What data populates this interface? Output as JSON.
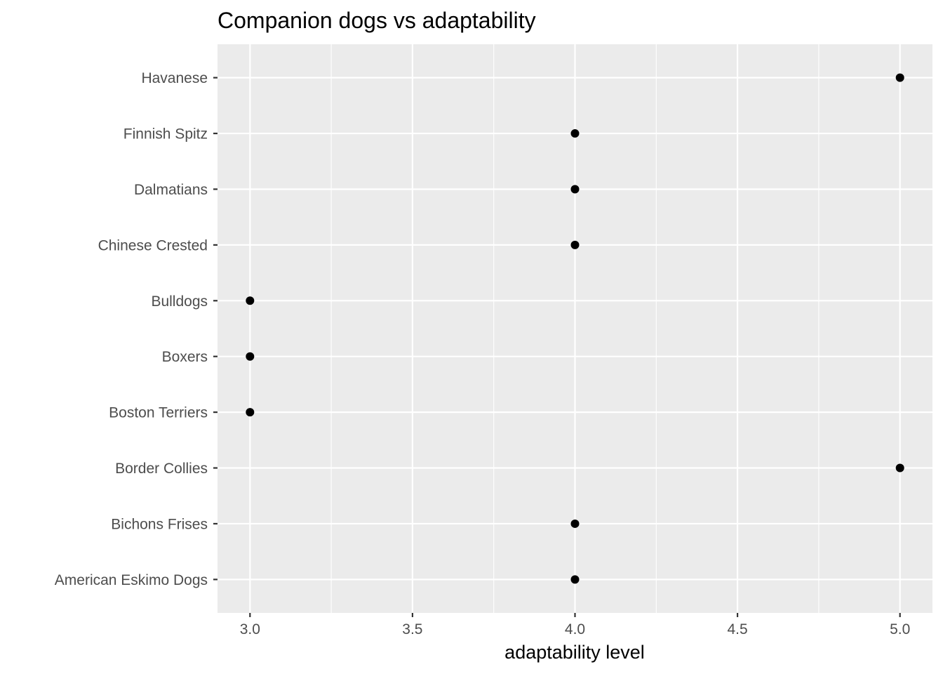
{
  "chart_data": {
    "type": "scatter",
    "title": "Companion dogs vs adaptability",
    "xlabel": "adaptability level",
    "ylabel": "",
    "xlim": [
      2.9,
      5.1
    ],
    "x_ticks": [
      "3.0",
      "3.5",
      "4.0",
      "4.5",
      "5.0"
    ],
    "x_tick_values": [
      3.0,
      3.5,
      4.0,
      4.5,
      5.0
    ],
    "grid": true,
    "panel_color": "#ebebeb",
    "point_color": "#000000",
    "categories": [
      "American Eskimo Dogs",
      "Bichons Frises",
      "Border Collies",
      "Boston Terriers",
      "Boxers",
      "Bulldogs",
      "Chinese Crested",
      "Dalmatians",
      "Finnish Spitz",
      "Havanese"
    ],
    "values": [
      4,
      4,
      5,
      3,
      3,
      3,
      4,
      4,
      4,
      5
    ]
  }
}
